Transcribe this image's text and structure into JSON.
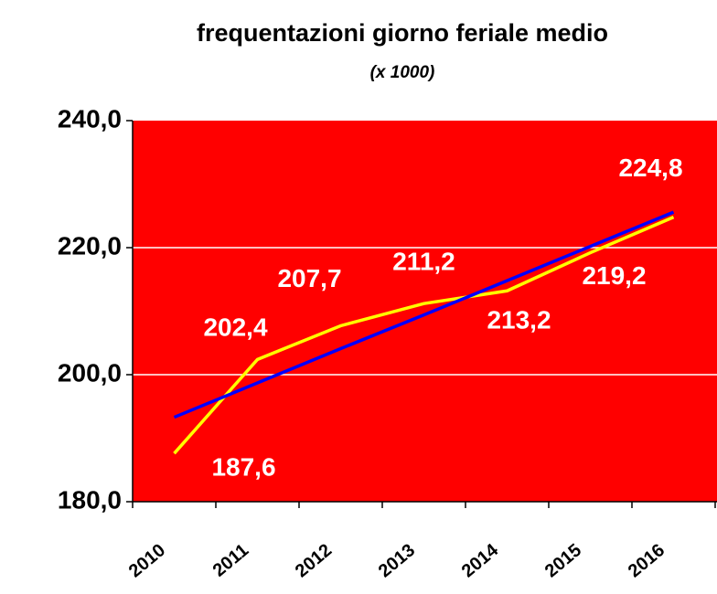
{
  "chart_data": {
    "type": "line",
    "title": "frequentazioni giorno feriale medio",
    "subtitle": "(x 1000)",
    "categories": [
      "2010",
      "2011",
      "2012",
      "2013",
      "2014",
      "2015",
      "2016"
    ],
    "series": [
      {
        "color": "#ffff00",
        "values": [
          187.6,
          202.4,
          207.7,
          211.2,
          213.2,
          219.2,
          224.8
        ],
        "value_labels": [
          "187,6",
          "202,4",
          "207,7",
          "211,2",
          "213,2",
          "219,2",
          "224,8"
        ]
      }
    ],
    "trendline": {
      "color": "#0000ff",
      "values": [
        193.3,
        198.7,
        204.1,
        209.4,
        214.8,
        220.2,
        225.6
      ]
    },
    "background": "#ff0000",
    "ylim": [
      180,
      240
    ],
    "yticks": [
      {
        "value": 180,
        "label": "180,0"
      },
      {
        "value": 200,
        "label": "200,0"
      },
      {
        "value": 220,
        "label": "220,0"
      },
      {
        "value": 240,
        "label": "240,0"
      }
    ],
    "grid": true
  }
}
